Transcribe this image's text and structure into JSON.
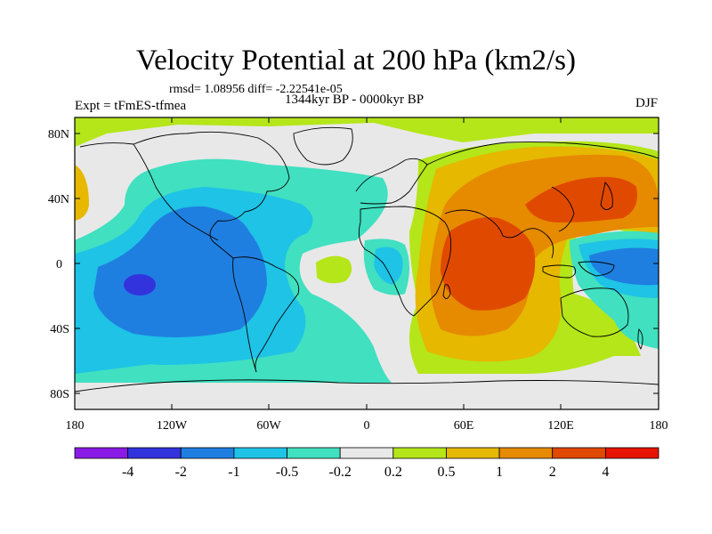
{
  "title": "Velocity Potential at 200 hPa (km2/s)",
  "stats": "rmsd= 1.08956 diff= -2.22541e-05",
  "expt_label": "Expt = tFmES-tfmea",
  "period_label": "1344kyr BP - 0000kyr BP",
  "season_label": "DJF",
  "lat_ticks": [
    "80N",
    "40N",
    "0",
    "40S",
    "80S"
  ],
  "lon_ticks": [
    "180",
    "120W",
    "60W",
    "0",
    "60E",
    "120E",
    "180"
  ],
  "colorbar": {
    "labels": [
      "-4",
      "-2",
      "-1",
      "-0.5",
      "-0.2",
      "0.2",
      "0.5",
      "1",
      "2",
      "4"
    ],
    "colors": [
      "#8a1ae6",
      "#3333dd",
      "#1f7fe0",
      "#1ec3e6",
      "#40e0c0",
      "#e8e8e8",
      "#b4e619",
      "#e6b800",
      "#e68a00",
      "#e04a00",
      "#e61400"
    ]
  },
  "colors": {
    "ocean_bg": "#e8e8e8",
    "coast": "#000000"
  }
}
